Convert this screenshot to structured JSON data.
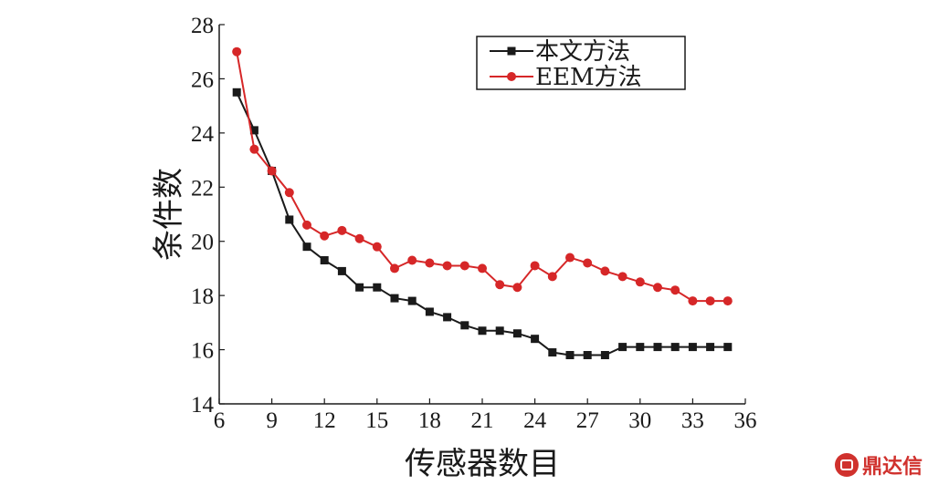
{
  "chart_data": {
    "type": "line",
    "title": "",
    "xlabel": "传感器数目",
    "ylabel": "条件数",
    "xlim": [
      6,
      36
    ],
    "ylim": [
      14,
      28
    ],
    "xticks": [
      6,
      9,
      12,
      15,
      18,
      21,
      24,
      27,
      30,
      33,
      36
    ],
    "yticks": [
      14,
      16,
      18,
      20,
      22,
      24,
      26,
      28
    ],
    "grid": false,
    "legend_position": "top-right",
    "series": [
      {
        "name": "本文方法",
        "color": "#1a1a1a",
        "marker": "square",
        "x": [
          7,
          8,
          9,
          10,
          11,
          12,
          13,
          14,
          15,
          16,
          17,
          18,
          19,
          20,
          21,
          22,
          23,
          24,
          25,
          26,
          27,
          28,
          29,
          30,
          31,
          32,
          33,
          34,
          35
        ],
        "y": [
          25.5,
          24.1,
          22.6,
          20.8,
          19.8,
          19.3,
          18.9,
          18.3,
          18.3,
          17.9,
          17.8,
          17.4,
          17.2,
          16.9,
          16.7,
          16.7,
          16.6,
          16.4,
          15.9,
          15.8,
          15.8,
          15.8,
          16.1,
          16.1,
          16.1,
          16.1,
          16.1,
          16.1,
          16.1
        ]
      },
      {
        "name": "EEM方法",
        "color": "#d62728",
        "marker": "circle",
        "x": [
          7,
          8,
          9,
          10,
          11,
          12,
          13,
          14,
          15,
          16,
          17,
          18,
          19,
          20,
          21,
          22,
          23,
          24,
          25,
          26,
          27,
          28,
          29,
          30,
          31,
          32,
          33,
          34,
          35
        ],
        "y": [
          27.0,
          23.4,
          22.6,
          21.8,
          20.6,
          20.2,
          20.4,
          20.1,
          19.8,
          19.0,
          19.3,
          19.2,
          19.1,
          19.1,
          19.0,
          18.4,
          18.3,
          19.1,
          18.7,
          19.4,
          19.2,
          18.9,
          18.7,
          18.5,
          18.3,
          18.2,
          17.8,
          17.8,
          17.8
        ]
      }
    ]
  },
  "watermark": {
    "text": "鼎达信",
    "color": "#d0312d"
  }
}
